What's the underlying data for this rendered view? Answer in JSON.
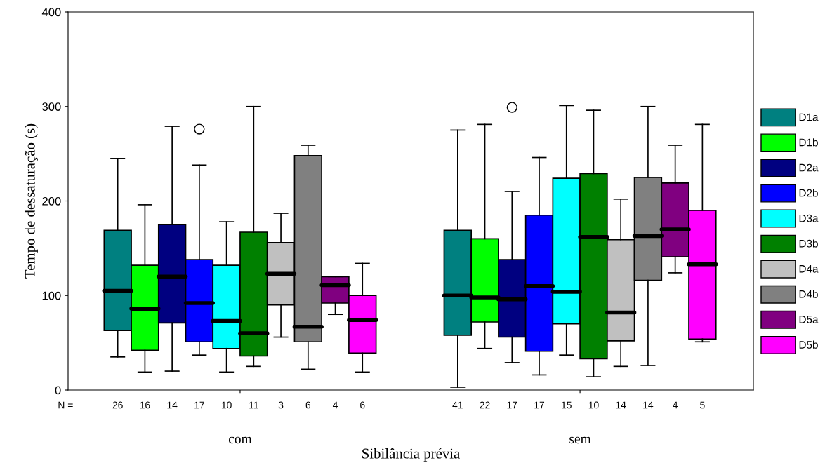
{
  "chart_data": {
    "type": "box",
    "xlabel": "Sibilância prévia",
    "ylabel": "Tempo de dessaturação (s)",
    "categories": [
      "com",
      "sem"
    ],
    "ylim": [
      0,
      400
    ],
    "yticks": [
      0,
      100,
      200,
      300,
      400
    ],
    "grid": false,
    "legend": "right",
    "annotations": [
      "N ="
    ],
    "series": [
      {
        "name": "D1a",
        "color": "#008080",
        "value_labels": [
          "26",
          "41"
        ],
        "boxes": [
          {
            "low": 35,
            "q1": 63,
            "median": 105,
            "q3": 169,
            "high": 245
          },
          {
            "low": 3,
            "q1": 58,
            "median": 100,
            "q3": 169,
            "high": 275
          }
        ]
      },
      {
        "name": "D1b",
        "color": "#00ff00",
        "value_labels": [
          "16",
          "22"
        ],
        "boxes": [
          {
            "low": 19,
            "q1": 42,
            "median": 86,
            "q3": 132,
            "high": 196
          },
          {
            "low": 44,
            "q1": 72,
            "median": 98,
            "q3": 160,
            "high": 281
          }
        ]
      },
      {
        "name": "D2a",
        "color": "#000080",
        "value_labels": [
          "14",
          "17"
        ],
        "boxes": [
          {
            "low": 20,
            "q1": 71,
            "median": 120,
            "q3": 175,
            "high": 279
          },
          {
            "low": 29,
            "q1": 56,
            "median": 96,
            "q3": 138,
            "high": 210,
            "outliers": [
              299
            ]
          }
        ]
      },
      {
        "name": "D2b",
        "color": "#0000ff",
        "value_labels": [
          "17",
          "17"
        ],
        "boxes": [
          {
            "low": 37,
            "q1": 51,
            "median": 92,
            "q3": 138,
            "high": 238,
            "outliers": [
              276
            ]
          },
          {
            "low": 16,
            "q1": 41,
            "median": 110,
            "q3": 185,
            "high": 246
          }
        ]
      },
      {
        "name": "D3a",
        "color": "#00ffff",
        "value_labels": [
          "10",
          "15"
        ],
        "boxes": [
          {
            "low": 19,
            "q1": 44,
            "median": 73,
            "q3": 132,
            "high": 178
          },
          {
            "low": 37,
            "q1": 70,
            "median": 104,
            "q3": 224,
            "high": 301
          }
        ]
      },
      {
        "name": "D3b",
        "color": "#008000",
        "value_labels": [
          "11",
          "10"
        ],
        "boxes": [
          {
            "low": 25,
            "q1": 36,
            "median": 60,
            "q3": 167,
            "high": 300
          },
          {
            "low": 14,
            "q1": 33,
            "median": 162,
            "q3": 229,
            "high": 296
          }
        ]
      },
      {
        "name": "D4a",
        "color": "#c0c0c0",
        "value_labels": [
          "3",
          "14"
        ],
        "boxes": [
          {
            "low": 56,
            "q1": 90,
            "median": 123,
            "q3": 156,
            "high": 187
          },
          {
            "low": 25,
            "q1": 52,
            "median": 82,
            "q3": 159,
            "high": 202
          }
        ]
      },
      {
        "name": "D4b",
        "color": "#808080",
        "value_labels": [
          "6",
          "14"
        ],
        "boxes": [
          {
            "low": 22,
            "q1": 51,
            "median": 67,
            "q3": 248,
            "high": 259
          },
          {
            "low": 26,
            "q1": 116,
            "median": 163,
            "q3": 225,
            "high": 300
          }
        ]
      },
      {
        "name": "D5a",
        "color": "#800080",
        "value_labels": [
          "4",
          "4"
        ],
        "boxes": [
          {
            "low": 80,
            "q1": 92,
            "median": 111,
            "q3": 120,
            "high": 120
          },
          {
            "low": 124,
            "q1": 141,
            "median": 170,
            "q3": 219,
            "high": 259
          }
        ]
      },
      {
        "name": "D5b",
        "color": "#ff00ff",
        "value_labels": [
          "6",
          "5"
        ],
        "boxes": [
          {
            "low": 19,
            "q1": 39,
            "median": 74,
            "q3": 100,
            "high": 134
          },
          {
            "low": 51,
            "q1": 54,
            "median": 133,
            "q3": 190,
            "high": 281
          }
        ]
      }
    ]
  }
}
